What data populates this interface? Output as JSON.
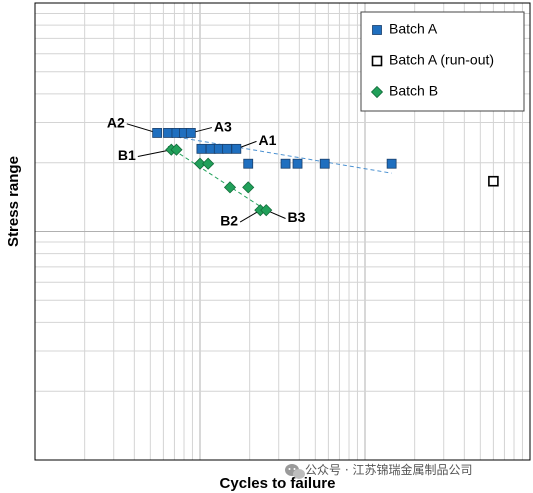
{
  "chart_data": {
    "type": "scatter",
    "title": "",
    "xlabel": "Cycles to failure",
    "ylabel": "Stress range",
    "xscale": "log",
    "yscale": "log",
    "xlim": [
      10000,
      10000000
    ],
    "ylim": [
      10,
      1000
    ],
    "tick_labels_shown": false,
    "grid": true,
    "legend": {
      "placement": "top-right",
      "entries": [
        {
          "label": "Batch A",
          "marker": "square-filled",
          "color": "#1f6fbf"
        },
        {
          "label": "Batch A (run-out)",
          "marker": "square-open",
          "color": "#000000"
        },
        {
          "label": "Batch B",
          "marker": "diamond-filled",
          "color": "#21a05a"
        }
      ]
    },
    "series": [
      {
        "name": "Batch A",
        "marker": "square-filled",
        "color": "#1f6fbf",
        "points": [
          [
            55000,
            270
          ],
          [
            64000,
            270
          ],
          [
            72000,
            270
          ],
          [
            80000,
            270
          ],
          [
            88000,
            270
          ],
          [
            102000,
            230
          ],
          [
            116000,
            230
          ],
          [
            130000,
            230
          ],
          [
            146000,
            230
          ],
          [
            166000,
            230
          ],
          [
            196000,
            198
          ],
          [
            330000,
            198
          ],
          [
            390000,
            198
          ],
          [
            570000,
            198
          ],
          [
            1450000,
            198
          ]
        ]
      },
      {
        "name": "Batch A (run-out)",
        "marker": "square-open",
        "color": "#000000",
        "points": [
          [
            6000000,
            166
          ]
        ]
      },
      {
        "name": "Batch B",
        "marker": "diamond-filled",
        "color": "#21a05a",
        "points": [
          [
            67000,
            228
          ],
          [
            72000,
            228
          ],
          [
            100000,
            198
          ],
          [
            112000,
            198
          ],
          [
            152000,
            156
          ],
          [
            196000,
            156
          ],
          [
            232000,
            124
          ],
          [
            252000,
            124
          ]
        ]
      }
    ],
    "trendlines": [
      {
        "series": "Batch A",
        "color": "#4a90d0",
        "dash": true,
        "from": [
          60000,
          265
        ],
        "to": [
          1450000,
          180
        ]
      },
      {
        "series": "Batch B",
        "color": "#21a05a",
        "dash": true,
        "from": [
          64000,
          236
        ],
        "to": [
          260000,
          122
        ]
      }
    ],
    "annotations": [
      {
        "label": "A1",
        "point": [
          166000,
          230
        ],
        "text_at": [
          220000,
          248
        ]
      },
      {
        "label": "A2",
        "point": [
          55000,
          270
        ],
        "text_at": [
          36000,
          296
        ]
      },
      {
        "label": "A3",
        "point": [
          88000,
          270
        ],
        "text_at": [
          118000,
          285
        ]
      },
      {
        "label": "B1",
        "point": [
          67000,
          228
        ],
        "text_at": [
          42000,
          213
        ]
      },
      {
        "label": "B2",
        "point": [
          232000,
          124
        ],
        "text_at": [
          175000,
          110
        ]
      },
      {
        "label": "B3",
        "point": [
          252000,
          124
        ],
        "text_at": [
          330000,
          114
        ]
      }
    ]
  },
  "watermark": {
    "text": "公众号 · 江苏锦瑞金属制品公司",
    "icon": "wechat-icon"
  }
}
